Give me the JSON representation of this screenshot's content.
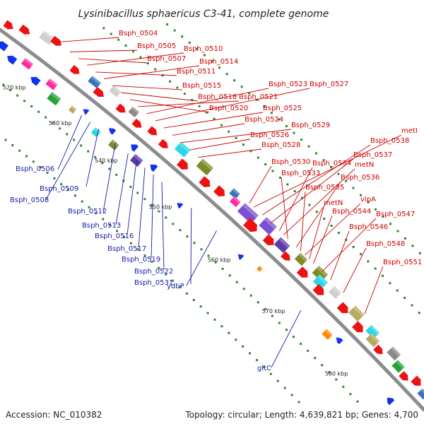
{
  "title": "Lysinibacillus sphaericus C3-41, complete genome",
  "footer": {
    "accession": "Accession: NC_010382",
    "summary": "Topology: circular; Length: 4,639,821 bp; Genes: 4,700"
  },
  "colors": {
    "backbone": "#8c8c8c",
    "forward_gene": "#ee1111",
    "reverse_gene": "#1133ee",
    "forward_label": "#cc0000",
    "reverse_label": "#1a1aa8",
    "tick_dots": "#2a8a2a"
  },
  "kbp_ticks": [
    "520 kbp",
    "530 kbp",
    "540 kbp",
    "550 kbp",
    "560 kbp",
    "570 kbp",
    "580 kbp"
  ],
  "forward_labels": [
    "Bsph_0504",
    "Bsph_0505",
    "Bsph_0507",
    "Bsph_0510",
    "Bsph_0511",
    "Bsph_0514",
    "Bsph_0515",
    "Bsph_0518",
    "Bsph_0520",
    "Bsph_0521",
    "Bsph_0523",
    "Bsph_0527",
    "Bsph_0525",
    "Bsph_0524",
    "Bsph_0529",
    "Bsph_0526",
    "Bsph_0528",
    "metI",
    "Bsph_0538",
    "Bsph_0537",
    "Bsph_0530",
    "Bsph_0534",
    "metN",
    "Bsph_0533",
    "Bsph_0536",
    "Bsph_0535",
    "vipA",
    "metN",
    "Bsph_0544",
    "Bsph_0547",
    "Bsph_0546",
    "Bsph_0548",
    "Bsph_0551"
  ],
  "reverse_labels": [
    "Bsph_0506",
    "Bsph_0509",
    "Bsph_0508",
    "Bsph_0512",
    "Bsph_0513",
    "Bsph_0516",
    "Bsph_0517",
    "Bsph_0519",
    "Bsph_0522",
    "Bsph_0531",
    "ydbP",
    "gltC"
  ]
}
